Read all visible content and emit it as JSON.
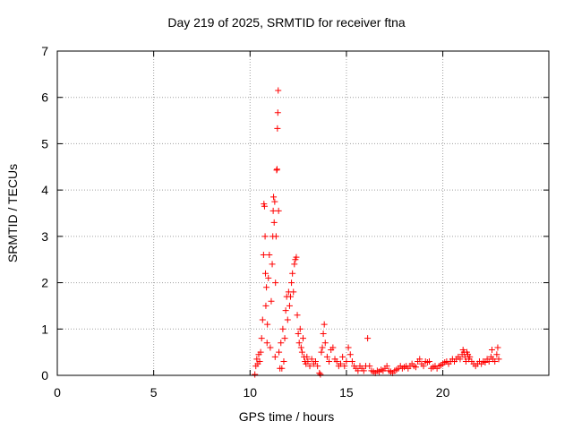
{
  "chart_data": {
    "type": "scatter",
    "title": "Day 219 of 2025, SRMTID for receiver ftna",
    "xlabel": "GPS time / hours",
    "ylabel": "SRMTID / TECUs",
    "xlim": [
      0,
      25.5
    ],
    "ylim": [
      0,
      7
    ],
    "xticks": [
      0,
      5,
      10,
      15,
      20
    ],
    "yticks": [
      0,
      1,
      2,
      3,
      4,
      5,
      6,
      7
    ],
    "grid": true,
    "marker": "+",
    "color": "#ff0000",
    "series": [
      {
        "name": "SRMTID",
        "points": [
          [
            10.25,
            0.02
          ],
          [
            10.3,
            0.2
          ],
          [
            10.35,
            0.35
          ],
          [
            10.4,
            0.25
          ],
          [
            10.45,
            0.45
          ],
          [
            10.5,
            0.3
          ],
          [
            10.55,
            0.5
          ],
          [
            10.6,
            0.8
          ],
          [
            10.65,
            1.2
          ],
          [
            10.7,
            2.6
          ],
          [
            10.72,
            3.7
          ],
          [
            10.75,
            3.65
          ],
          [
            10.78,
            3.0
          ],
          [
            10.8,
            2.2
          ],
          [
            10.82,
            1.5
          ],
          [
            10.85,
            1.9
          ],
          [
            10.88,
            0.7
          ],
          [
            10.9,
            1.1
          ],
          [
            10.95,
            2.1
          ],
          [
            11.0,
            2.6
          ],
          [
            11.05,
            0.6
          ],
          [
            11.1,
            1.6
          ],
          [
            11.15,
            2.4
          ],
          [
            11.18,
            3.0
          ],
          [
            11.2,
            3.55
          ],
          [
            11.22,
            3.85
          ],
          [
            11.25,
            3.3
          ],
          [
            11.28,
            3.75
          ],
          [
            11.3,
            0.4
          ],
          [
            11.32,
            2.0
          ],
          [
            11.35,
            3.0
          ],
          [
            11.38,
            4.43
          ],
          [
            11.4,
            4.45
          ],
          [
            11.42,
            5.33
          ],
          [
            11.44,
            5.67
          ],
          [
            11.46,
            6.15
          ],
          [
            11.48,
            3.55
          ],
          [
            11.5,
            0.5
          ],
          [
            11.55,
            0.15
          ],
          [
            11.6,
            0.7
          ],
          [
            11.65,
            0.15
          ],
          [
            11.7,
            1.0
          ],
          [
            11.75,
            0.3
          ],
          [
            11.8,
            0.8
          ],
          [
            11.85,
            1.4
          ],
          [
            11.9,
            1.7
          ],
          [
            11.95,
            1.2
          ],
          [
            12.0,
            1.8
          ],
          [
            12.05,
            1.5
          ],
          [
            12.1,
            1.7
          ],
          [
            12.15,
            2.0
          ],
          [
            12.2,
            2.2
          ],
          [
            12.25,
            1.8
          ],
          [
            12.3,
            2.4
          ],
          [
            12.35,
            2.5
          ],
          [
            12.4,
            2.55
          ],
          [
            12.45,
            1.3
          ],
          [
            12.5,
            0.9
          ],
          [
            12.55,
            0.7
          ],
          [
            12.6,
            1.0
          ],
          [
            12.65,
            0.6
          ],
          [
            12.7,
            0.5
          ],
          [
            12.75,
            0.8
          ],
          [
            12.8,
            0.4
          ],
          [
            12.85,
            0.3
          ],
          [
            12.9,
            0.25
          ],
          [
            12.95,
            0.4
          ],
          [
            13.0,
            0.3
          ],
          [
            13.1,
            0.2
          ],
          [
            13.2,
            0.35
          ],
          [
            13.3,
            0.25
          ],
          [
            13.4,
            0.3
          ],
          [
            13.5,
            0.2
          ],
          [
            13.6,
            0.05
          ],
          [
            13.65,
            0.02
          ],
          [
            13.7,
            0.5
          ],
          [
            13.75,
            0.6
          ],
          [
            13.8,
            0.9
          ],
          [
            13.85,
            1.1
          ],
          [
            13.9,
            0.7
          ],
          [
            14.0,
            0.4
          ],
          [
            14.1,
            0.3
          ],
          [
            14.2,
            0.55
          ],
          [
            14.3,
            0.6
          ],
          [
            14.4,
            0.35
          ],
          [
            14.5,
            0.3
          ],
          [
            14.6,
            0.2
          ],
          [
            14.7,
            0.25
          ],
          [
            14.8,
            0.4
          ],
          [
            14.9,
            0.2
          ],
          [
            15.0,
            0.3
          ],
          [
            15.1,
            0.6
          ],
          [
            15.2,
            0.45
          ],
          [
            15.3,
            0.3
          ],
          [
            15.4,
            0.2
          ],
          [
            15.5,
            0.15
          ],
          [
            15.6,
            0.1
          ],
          [
            15.7,
            0.2
          ],
          [
            15.8,
            0.15
          ],
          [
            15.9,
            0.1
          ],
          [
            16.0,
            0.2
          ],
          [
            16.1,
            0.8
          ],
          [
            16.2,
            0.2
          ],
          [
            16.3,
            0.1
          ],
          [
            16.4,
            0.08
          ],
          [
            16.5,
            0.05
          ],
          [
            16.6,
            0.1
          ],
          [
            16.7,
            0.08
          ],
          [
            16.8,
            0.12
          ],
          [
            16.9,
            0.1
          ],
          [
            17.0,
            0.15
          ],
          [
            17.1,
            0.2
          ],
          [
            17.2,
            0.1
          ],
          [
            17.3,
            0.08
          ],
          [
            17.4,
            0.05
          ],
          [
            17.5,
            0.1
          ],
          [
            17.6,
            0.12
          ],
          [
            17.7,
            0.15
          ],
          [
            17.8,
            0.2
          ],
          [
            17.9,
            0.15
          ],
          [
            18.0,
            0.18
          ],
          [
            18.1,
            0.2
          ],
          [
            18.2,
            0.15
          ],
          [
            18.3,
            0.2
          ],
          [
            18.4,
            0.25
          ],
          [
            18.5,
            0.2
          ],
          [
            18.6,
            0.18
          ],
          [
            18.7,
            0.3
          ],
          [
            18.8,
            0.35
          ],
          [
            18.9,
            0.25
          ],
          [
            19.0,
            0.2
          ],
          [
            19.1,
            0.3
          ],
          [
            19.2,
            0.28
          ],
          [
            19.3,
            0.3
          ],
          [
            19.4,
            0.15
          ],
          [
            19.5,
            0.18
          ],
          [
            19.6,
            0.2
          ],
          [
            19.7,
            0.15
          ],
          [
            19.8,
            0.2
          ],
          [
            19.9,
            0.22
          ],
          [
            20.0,
            0.25
          ],
          [
            20.1,
            0.28
          ],
          [
            20.2,
            0.3
          ],
          [
            20.3,
            0.25
          ],
          [
            20.4,
            0.3
          ],
          [
            20.5,
            0.35
          ],
          [
            20.6,
            0.3
          ],
          [
            20.7,
            0.35
          ],
          [
            20.8,
            0.4
          ],
          [
            20.9,
            0.35
          ],
          [
            21.0,
            0.45
          ],
          [
            21.05,
            0.55
          ],
          [
            21.1,
            0.5
          ],
          [
            21.15,
            0.4
          ],
          [
            21.2,
            0.3
          ],
          [
            21.25,
            0.5
          ],
          [
            21.3,
            0.45
          ],
          [
            21.35,
            0.35
          ],
          [
            21.4,
            0.4
          ],
          [
            21.5,
            0.3
          ],
          [
            21.6,
            0.25
          ],
          [
            21.7,
            0.2
          ],
          [
            21.8,
            0.25
          ],
          [
            21.9,
            0.3
          ],
          [
            22.0,
            0.25
          ],
          [
            22.1,
            0.3
          ],
          [
            22.2,
            0.28
          ],
          [
            22.3,
            0.35
          ],
          [
            22.4,
            0.3
          ],
          [
            22.5,
            0.4
          ],
          [
            22.55,
            0.55
          ],
          [
            22.6,
            0.35
          ],
          [
            22.7,
            0.3
          ],
          [
            22.8,
            0.45
          ],
          [
            22.85,
            0.6
          ],
          [
            22.9,
            0.35
          ]
        ]
      }
    ]
  }
}
